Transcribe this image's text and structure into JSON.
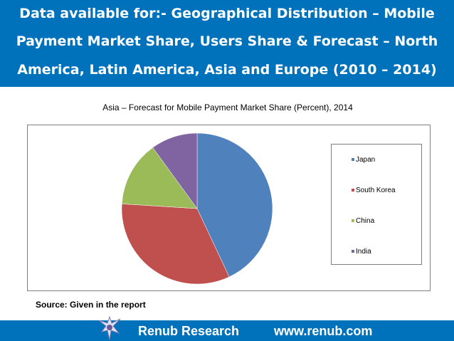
{
  "header": {
    "line1": "Data available for:- Geographical Distribution – Mobile",
    "line2": "Payment Market Share, Users Share & Forecast – North",
    "line3": "America, Latin America, Asia and Europe (2010 – 2014)"
  },
  "chart_data": {
    "type": "pie",
    "title": "Asia – Forecast for Mobile Payment Market Share (Percent), 2014",
    "legend_position": "right",
    "categories": [
      "Japan",
      "South Korea",
      "China",
      "India"
    ],
    "values": [
      43,
      33,
      14,
      10
    ],
    "colors": [
      "#4f81bd",
      "#c0504d",
      "#9bbb59",
      "#8064a2"
    ]
  },
  "source": "Source: Given in the report",
  "footer": {
    "brand": "Renub Research",
    "url": "www.renub.com"
  }
}
